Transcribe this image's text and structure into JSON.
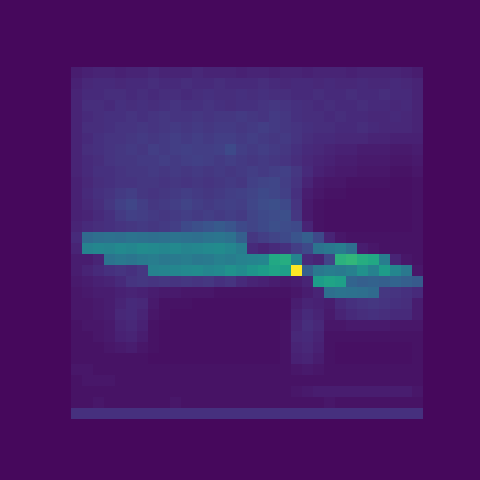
{
  "chart_data": {
    "type": "heatmap",
    "tick_labels": false,
    "zlim": [
      0,
      1
    ],
    "cells": [
      [
        0.08,
        0.09,
        0.1,
        0.1,
        0.09,
        0.1,
        0.1,
        0.11,
        0.1,
        0.1,
        0.1,
        0.11,
        0.1,
        0.1,
        0.1,
        0.09,
        0.1,
        0.1,
        0.09,
        0.1,
        0.1,
        0.09,
        0.1,
        0.1,
        0.1,
        0.09,
        0.1,
        0.1,
        0.1,
        0.1,
        0.09,
        0.08
      ],
      [
        0.09,
        0.11,
        0.12,
        0.12,
        0.11,
        0.12,
        0.12,
        0.13,
        0.12,
        0.12,
        0.13,
        0.12,
        0.12,
        0.13,
        0.12,
        0.12,
        0.12,
        0.13,
        0.12,
        0.11,
        0.12,
        0.12,
        0.11,
        0.12,
        0.11,
        0.11,
        0.12,
        0.11,
        0.11,
        0.12,
        0.11,
        0.1
      ],
      [
        0.1,
        0.12,
        0.12,
        0.13,
        0.13,
        0.12,
        0.13,
        0.12,
        0.13,
        0.13,
        0.12,
        0.13,
        0.14,
        0.13,
        0.13,
        0.14,
        0.13,
        0.14,
        0.13,
        0.13,
        0.12,
        0.12,
        0.13,
        0.12,
        0.12,
        0.13,
        0.12,
        0.12,
        0.13,
        0.12,
        0.12,
        0.1
      ],
      [
        0.1,
        0.13,
        0.13,
        0.12,
        0.14,
        0.13,
        0.14,
        0.13,
        0.14,
        0.15,
        0.14,
        0.14,
        0.15,
        0.14,
        0.13,
        0.14,
        0.14,
        0.15,
        0.16,
        0.15,
        0.14,
        0.13,
        0.12,
        0.13,
        0.12,
        0.12,
        0.13,
        0.12,
        0.12,
        0.11,
        0.12,
        0.1
      ],
      [
        0.1,
        0.12,
        0.13,
        0.14,
        0.14,
        0.15,
        0.14,
        0.15,
        0.16,
        0.15,
        0.15,
        0.16,
        0.15,
        0.16,
        0.16,
        0.17,
        0.16,
        0.15,
        0.17,
        0.16,
        0.14,
        0.13,
        0.13,
        0.12,
        0.13,
        0.12,
        0.12,
        0.11,
        0.11,
        0.12,
        0.11,
        0.1
      ],
      [
        0.1,
        0.13,
        0.13,
        0.14,
        0.15,
        0.15,
        0.16,
        0.15,
        0.16,
        0.17,
        0.16,
        0.17,
        0.16,
        0.17,
        0.17,
        0.16,
        0.17,
        0.18,
        0.17,
        0.16,
        0.15,
        0.14,
        0.13,
        0.13,
        0.12,
        0.12,
        0.13,
        0.12,
        0.11,
        0.11,
        0.11,
        0.1
      ],
      [
        0.1,
        0.12,
        0.14,
        0.15,
        0.15,
        0.16,
        0.17,
        0.16,
        0.17,
        0.18,
        0.17,
        0.18,
        0.17,
        0.18,
        0.18,
        0.17,
        0.18,
        0.17,
        0.16,
        0.17,
        0.15,
        0.13,
        0.12,
        0.12,
        0.11,
        0.11,
        0.11,
        0.1,
        0.1,
        0.09,
        0.09,
        0.09
      ],
      [
        0.1,
        0.13,
        0.14,
        0.15,
        0.16,
        0.17,
        0.16,
        0.18,
        0.17,
        0.18,
        0.19,
        0.18,
        0.18,
        0.19,
        0.22,
        0.18,
        0.17,
        0.18,
        0.17,
        0.16,
        0.14,
        0.12,
        0.11,
        0.1,
        0.09,
        0.09,
        0.08,
        0.08,
        0.08,
        0.07,
        0.07,
        0.08
      ],
      [
        0.1,
        0.12,
        0.13,
        0.15,
        0.16,
        0.16,
        0.17,
        0.17,
        0.18,
        0.17,
        0.18,
        0.19,
        0.18,
        0.17,
        0.18,
        0.17,
        0.16,
        0.17,
        0.16,
        0.15,
        0.13,
        0.11,
        0.1,
        0.09,
        0.08,
        0.08,
        0.07,
        0.07,
        0.07,
        0.06,
        0.06,
        0.07
      ],
      [
        0.1,
        0.12,
        0.14,
        0.14,
        0.15,
        0.16,
        0.16,
        0.17,
        0.16,
        0.17,
        0.16,
        0.17,
        0.16,
        0.17,
        0.16,
        0.17,
        0.18,
        0.17,
        0.18,
        0.19,
        0.16,
        0.12,
        0.09,
        0.08,
        0.07,
        0.07,
        0.06,
        0.06,
        0.06,
        0.05,
        0.05,
        0.06
      ],
      [
        0.09,
        0.11,
        0.13,
        0.14,
        0.15,
        0.15,
        0.16,
        0.16,
        0.15,
        0.16,
        0.15,
        0.16,
        0.15,
        0.16,
        0.17,
        0.16,
        0.19,
        0.2,
        0.21,
        0.18,
        0.15,
        0.1,
        0.07,
        0.06,
        0.06,
        0.05,
        0.05,
        0.05,
        0.05,
        0.04,
        0.04,
        0.05
      ],
      [
        0.09,
        0.12,
        0.14,
        0.15,
        0.17,
        0.18,
        0.16,
        0.15,
        0.16,
        0.17,
        0.18,
        0.17,
        0.16,
        0.17,
        0.18,
        0.19,
        0.2,
        0.22,
        0.21,
        0.19,
        0.14,
        0.08,
        0.06,
        0.05,
        0.05,
        0.04,
        0.04,
        0.04,
        0.04,
        0.04,
        0.04,
        0.05
      ],
      [
        0.09,
        0.11,
        0.13,
        0.16,
        0.19,
        0.21,
        0.18,
        0.16,
        0.17,
        0.18,
        0.2,
        0.18,
        0.17,
        0.18,
        0.19,
        0.18,
        0.21,
        0.23,
        0.24,
        0.22,
        0.15,
        0.07,
        0.05,
        0.04,
        0.04,
        0.04,
        0.04,
        0.04,
        0.04,
        0.04,
        0.04,
        0.05
      ],
      [
        0.09,
        0.1,
        0.12,
        0.14,
        0.17,
        0.19,
        0.18,
        0.17,
        0.16,
        0.17,
        0.18,
        0.17,
        0.18,
        0.17,
        0.18,
        0.17,
        0.2,
        0.22,
        0.23,
        0.24,
        0.16,
        0.07,
        0.05,
        0.04,
        0.04,
        0.04,
        0.04,
        0.04,
        0.04,
        0.04,
        0.04,
        0.05
      ],
      [
        0.1,
        0.12,
        0.13,
        0.14,
        0.15,
        0.16,
        0.17,
        0.16,
        0.17,
        0.18,
        0.22,
        0.24,
        0.26,
        0.28,
        0.26,
        0.22,
        0.2,
        0.22,
        0.24,
        0.23,
        0.22,
        0.1,
        0.05,
        0.04,
        0.04,
        0.04,
        0.04,
        0.04,
        0.04,
        0.04,
        0.04,
        0.05
      ],
      [
        0.12,
        0.34,
        0.36,
        0.37,
        0.36,
        0.38,
        0.37,
        0.36,
        0.37,
        0.38,
        0.37,
        0.36,
        0.38,
        0.39,
        0.37,
        0.3,
        0.16,
        0.18,
        0.2,
        0.22,
        0.26,
        0.3,
        0.22,
        0.1,
        0.06,
        0.05,
        0.05,
        0.05,
        0.05,
        0.05,
        0.05,
        0.05
      ],
      [
        0.1,
        0.44,
        0.46,
        0.45,
        0.47,
        0.46,
        0.48,
        0.47,
        0.46,
        0.47,
        0.45,
        0.46,
        0.47,
        0.48,
        0.46,
        0.42,
        0.12,
        0.1,
        0.12,
        0.14,
        0.18,
        0.22,
        0.38,
        0.4,
        0.42,
        0.36,
        0.08,
        0.06,
        0.05,
        0.05,
        0.05,
        0.05
      ],
      [
        0.08,
        0.08,
        0.1,
        0.38,
        0.4,
        0.39,
        0.41,
        0.42,
        0.4,
        0.41,
        0.42,
        0.4,
        0.41,
        0.43,
        0.42,
        0.44,
        0.45,
        0.46,
        0.6,
        0.62,
        0.45,
        0.12,
        0.1,
        0.2,
        0.64,
        0.66,
        0.62,
        0.6,
        0.42,
        0.1,
        0.06,
        0.05
      ],
      [
        0.08,
        0.1,
        0.12,
        0.14,
        0.15,
        0.14,
        0.16,
        0.44,
        0.45,
        0.46,
        0.47,
        0.48,
        0.46,
        0.47,
        0.5,
        0.48,
        0.52,
        0.55,
        0.58,
        0.56,
        1.0,
        0.3,
        0.4,
        0.42,
        0.41,
        0.43,
        0.5,
        0.44,
        0.55,
        0.46,
        0.4,
        0.06
      ],
      [
        0.07,
        0.08,
        0.09,
        0.1,
        0.12,
        0.15,
        0.16,
        0.15,
        0.16,
        0.15,
        0.16,
        0.15,
        0.16,
        0.14,
        0.15,
        0.12,
        0.1,
        0.09,
        0.08,
        0.07,
        0.08,
        0.1,
        0.55,
        0.58,
        0.56,
        0.32,
        0.3,
        0.31,
        0.3,
        0.32,
        0.3,
        0.28
      ],
      [
        0.06,
        0.07,
        0.08,
        0.08,
        0.09,
        0.1,
        0.09,
        0.08,
        0.07,
        0.07,
        0.06,
        0.06,
        0.06,
        0.05,
        0.05,
        0.05,
        0.05,
        0.05,
        0.05,
        0.05,
        0.06,
        0.08,
        0.1,
        0.36,
        0.38,
        0.37,
        0.36,
        0.34,
        0.16,
        0.15,
        0.14,
        0.12
      ],
      [
        0.06,
        0.06,
        0.07,
        0.08,
        0.1,
        0.12,
        0.11,
        0.07,
        0.05,
        0.05,
        0.05,
        0.04,
        0.04,
        0.04,
        0.04,
        0.04,
        0.04,
        0.04,
        0.04,
        0.04,
        0.08,
        0.1,
        0.09,
        0.08,
        0.12,
        0.14,
        0.15,
        0.16,
        0.15,
        0.14,
        0.13,
        0.08
      ],
      [
        0.06,
        0.06,
        0.07,
        0.08,
        0.11,
        0.12,
        0.1,
        0.06,
        0.05,
        0.04,
        0.04,
        0.04,
        0.04,
        0.04,
        0.04,
        0.04,
        0.04,
        0.04,
        0.04,
        0.04,
        0.09,
        0.12,
        0.1,
        0.07,
        0.1,
        0.12,
        0.13,
        0.14,
        0.13,
        0.12,
        0.12,
        0.08
      ],
      [
        0.05,
        0.06,
        0.06,
        0.07,
        0.1,
        0.11,
        0.09,
        0.05,
        0.04,
        0.04,
        0.04,
        0.04,
        0.04,
        0.04,
        0.04,
        0.04,
        0.04,
        0.04,
        0.04,
        0.05,
        0.1,
        0.13,
        0.11,
        0.06,
        0.06,
        0.07,
        0.07,
        0.07,
        0.07,
        0.06,
        0.06,
        0.06
      ],
      [
        0.05,
        0.05,
        0.06,
        0.07,
        0.09,
        0.1,
        0.08,
        0.05,
        0.04,
        0.04,
        0.04,
        0.04,
        0.04,
        0.04,
        0.04,
        0.04,
        0.04,
        0.04,
        0.04,
        0.05,
        0.11,
        0.12,
        0.1,
        0.05,
        0.05,
        0.05,
        0.05,
        0.05,
        0.05,
        0.05,
        0.05,
        0.05
      ],
      [
        0.05,
        0.05,
        0.05,
        0.06,
        0.07,
        0.08,
        0.06,
        0.05,
        0.04,
        0.04,
        0.04,
        0.04,
        0.04,
        0.04,
        0.04,
        0.04,
        0.04,
        0.04,
        0.04,
        0.05,
        0.1,
        0.11,
        0.09,
        0.05,
        0.04,
        0.04,
        0.04,
        0.04,
        0.04,
        0.04,
        0.04,
        0.05
      ],
      [
        0.05,
        0.05,
        0.05,
        0.05,
        0.05,
        0.05,
        0.05,
        0.04,
        0.04,
        0.04,
        0.04,
        0.04,
        0.04,
        0.04,
        0.04,
        0.04,
        0.04,
        0.04,
        0.04,
        0.05,
        0.09,
        0.1,
        0.08,
        0.05,
        0.04,
        0.04,
        0.04,
        0.04,
        0.04,
        0.04,
        0.04,
        0.05
      ],
      [
        0.06,
        0.06,
        0.05,
        0.05,
        0.05,
        0.05,
        0.05,
        0.05,
        0.05,
        0.05,
        0.05,
        0.05,
        0.05,
        0.05,
        0.05,
        0.05,
        0.05,
        0.05,
        0.05,
        0.05,
        0.06,
        0.07,
        0.06,
        0.05,
        0.05,
        0.05,
        0.05,
        0.05,
        0.05,
        0.05,
        0.05,
        0.05
      ],
      [
        0.05,
        0.06,
        0.06,
        0.06,
        0.05,
        0.05,
        0.05,
        0.05,
        0.05,
        0.05,
        0.05,
        0.05,
        0.05,
        0.05,
        0.05,
        0.05,
        0.05,
        0.05,
        0.05,
        0.05,
        0.05,
        0.05,
        0.05,
        0.05,
        0.05,
        0.05,
        0.05,
        0.05,
        0.05,
        0.05,
        0.05,
        0.05
      ],
      [
        0.05,
        0.05,
        0.05,
        0.05,
        0.05,
        0.05,
        0.05,
        0.05,
        0.05,
        0.05,
        0.05,
        0.05,
        0.05,
        0.05,
        0.05,
        0.05,
        0.05,
        0.05,
        0.05,
        0.05,
        0.06,
        0.07,
        0.08,
        0.08,
        0.08,
        0.08,
        0.08,
        0.08,
        0.08,
        0.08,
        0.08,
        0.06
      ],
      [
        0.05,
        0.05,
        0.06,
        0.05,
        0.05,
        0.05,
        0.05,
        0.05,
        0.05,
        0.06,
        0.05,
        0.05,
        0.05,
        0.05,
        0.05,
        0.05,
        0.05,
        0.05,
        0.05,
        0.05,
        0.05,
        0.05,
        0.05,
        0.06,
        0.05,
        0.05,
        0.05,
        0.05,
        0.05,
        0.05,
        0.05,
        0.05
      ],
      [
        0.14,
        0.14,
        0.14,
        0.14,
        0.14,
        0.14,
        0.14,
        0.14,
        0.14,
        0.14,
        0.14,
        0.14,
        0.14,
        0.14,
        0.14,
        0.14,
        0.14,
        0.14,
        0.14,
        0.14,
        0.14,
        0.14,
        0.14,
        0.14,
        0.14,
        0.14,
        0.14,
        0.14,
        0.14,
        0.14,
        0.14,
        0.14
      ]
    ]
  }
}
